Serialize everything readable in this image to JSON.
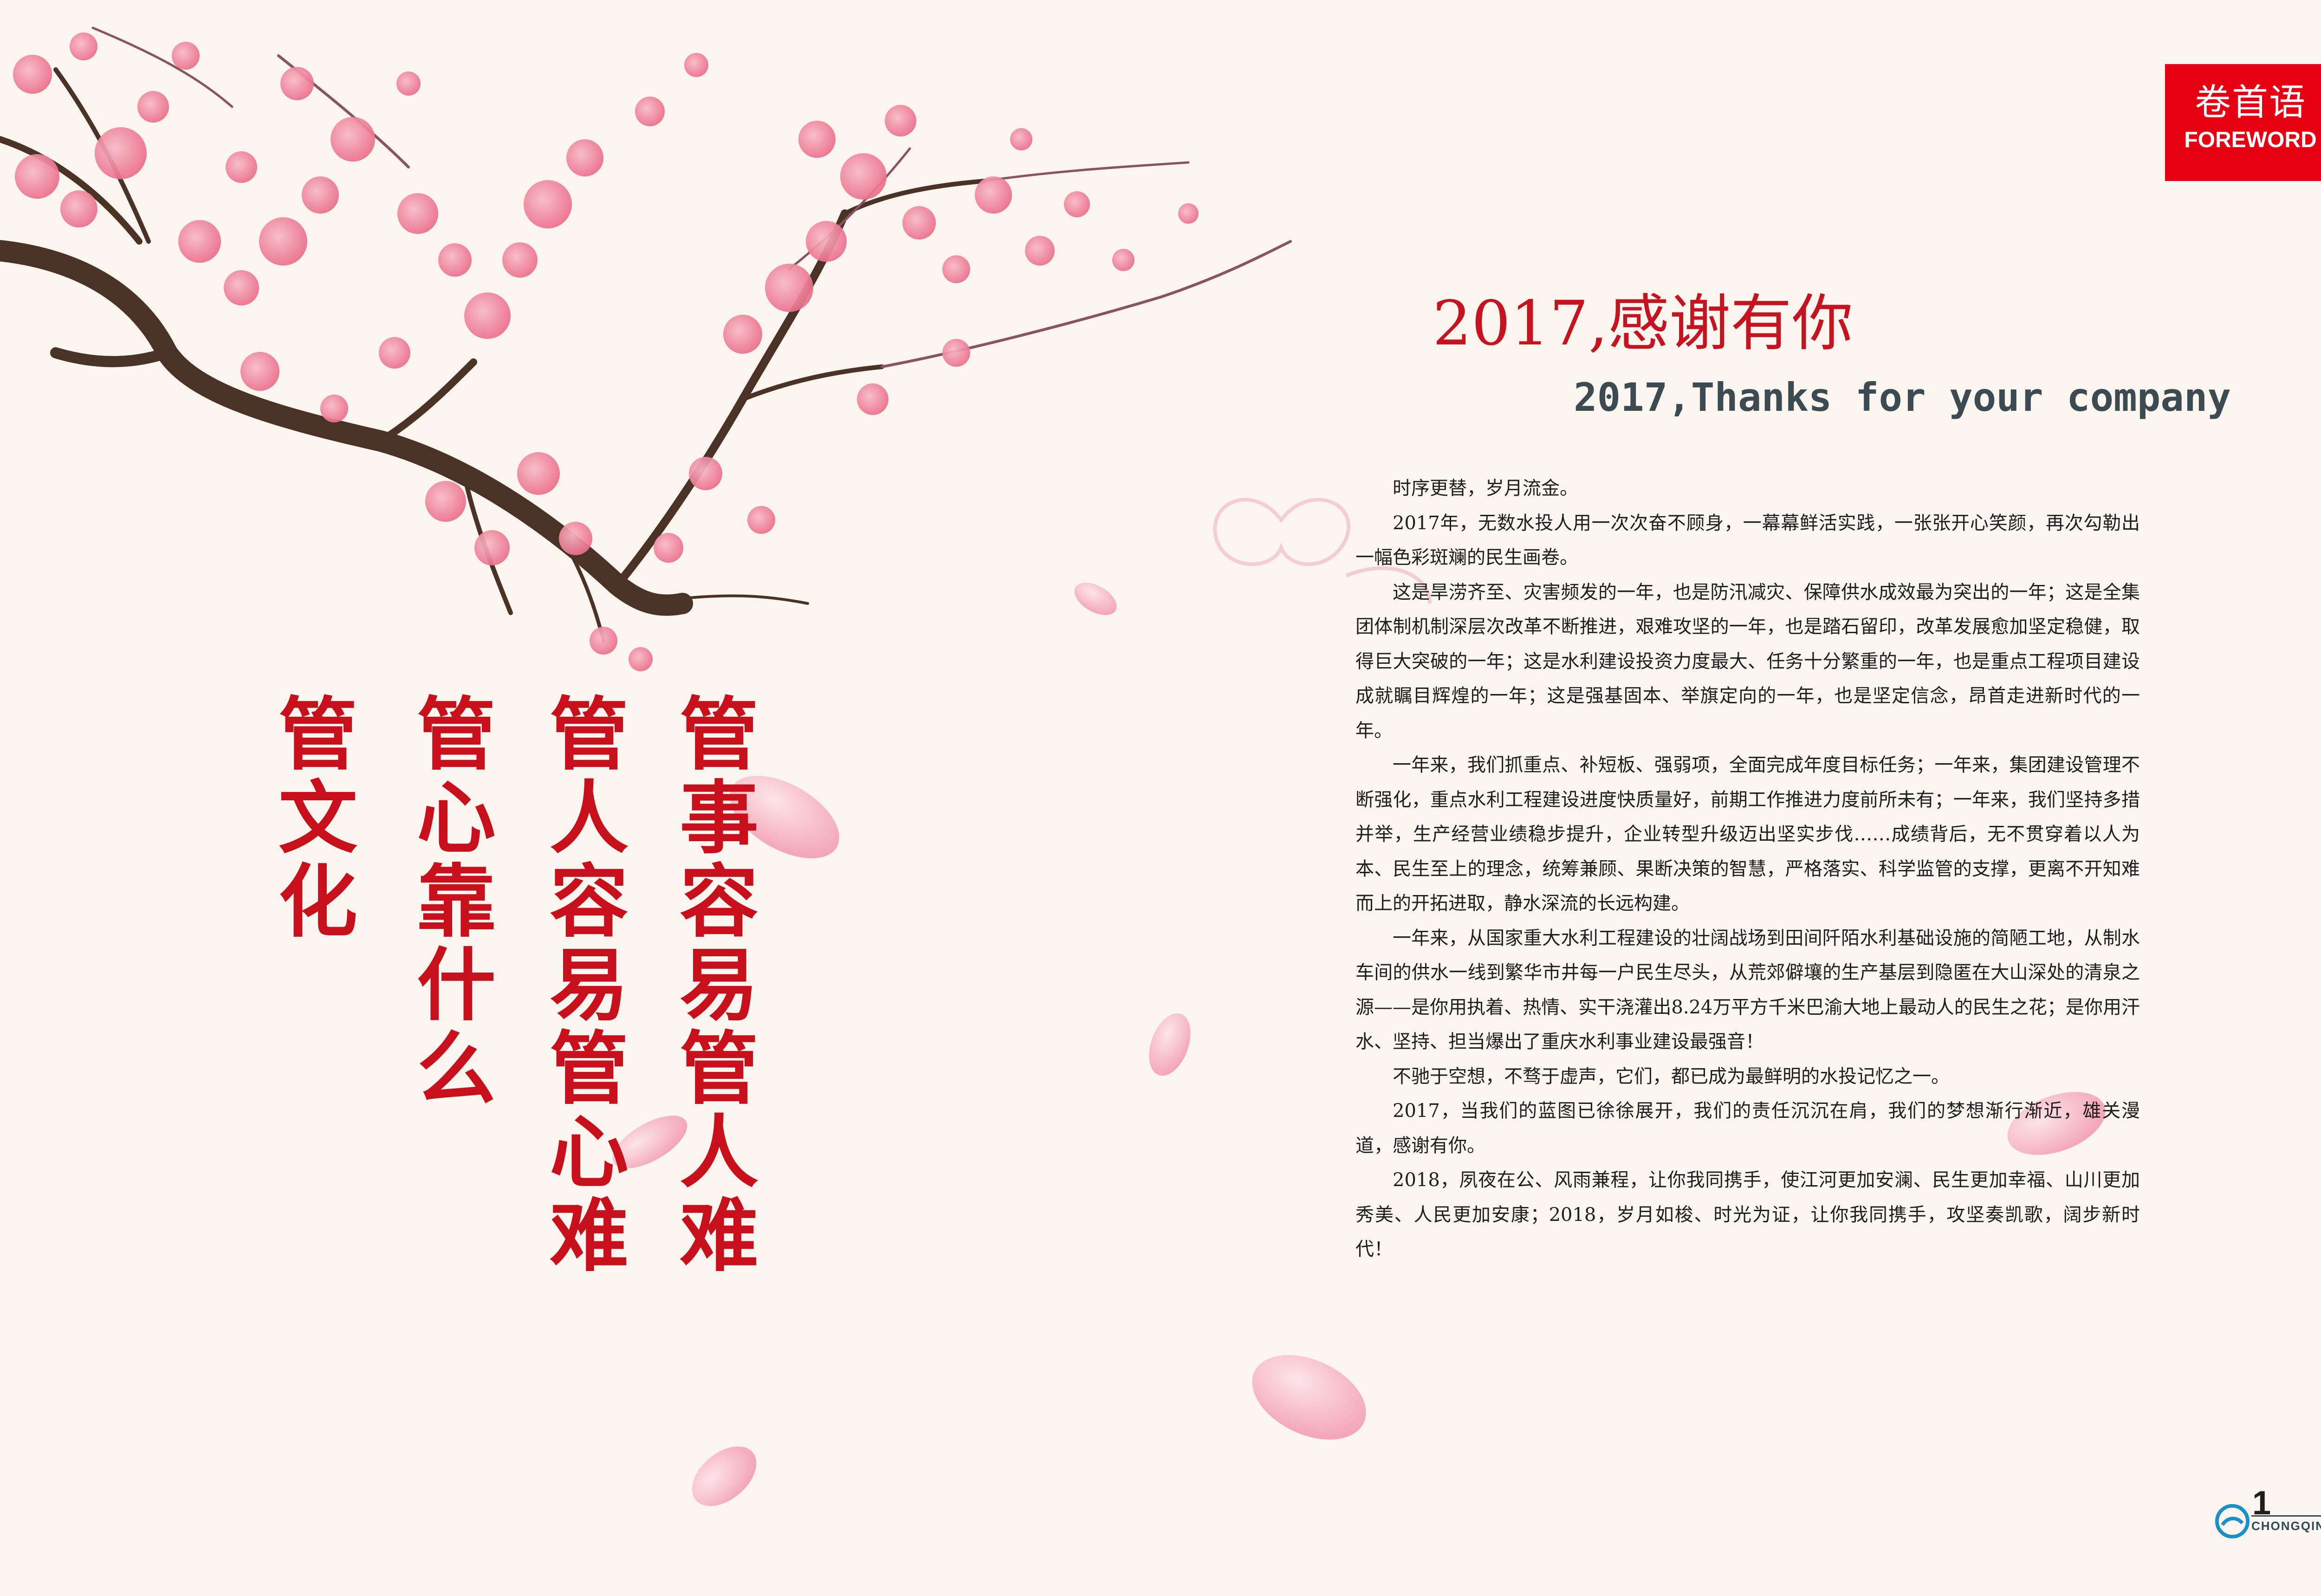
{
  "tag": {
    "cn": "卷首语",
    "en": "FOREWORD"
  },
  "title_cn": "2017,感谢有你",
  "title_en": "2017,Thanks for your company",
  "paragraphs": [
    "时序更替，岁月流金。",
    "2017年，无数水投人用一次次奋不顾身，一幕幕鲜活实践，一张张开心笑颜，再次勾勒出一幅色彩斑斓的民生画卷。",
    "这是旱涝齐至、灾害频发的一年，也是防汛减灾、保障供水成效最为突出的一年；这是全集团体制机制深层次改革不断推进，艰难攻坚的一年，也是踏石留印，改革发展愈加坚定稳健，取得巨大突破的一年；这是水利建设投资力度最大、任务十分繁重的一年，也是重点工程项目建设成就瞩目辉煌的一年；这是强基固本、举旗定向的一年，也是坚定信念，昂首走进新时代的一年。",
    "一年来，我们抓重点、补短板、强弱项，全面完成年度目标任务；一年来，集团建设管理不断强化，重点水利工程建设进度快质量好，前期工作推进力度前所未有；一年来，我们坚持多措并举，生产经营业绩稳步提升，企业转型升级迈出坚实步伐……成绩背后，无不贯穿着以人为本、民生至上的理念，统筹兼顾、果断决策的智慧，严格落实、科学监管的支撑，更离不开知难而上的开拓进取，静水深流的长远构建。",
    "一年来，从国家重大水利工程建设的壮阔战场到田间阡陌水利基础设施的简陋工地，从制水车间的供水一线到繁华市井每一户民生尽头，从荒郊僻壤的生产基层到隐匿在大山深处的清泉之源——是你用执着、热情、实干浇灌出8.24万平方千米巴渝大地上最动人的民生之花；是你用汗水、坚持、担当爆出了重庆水利事业建设最强音！",
    "不驰于空想，不骛于虚声，它们，都已成为最鲜明的水投记忆之一。",
    "2017，当我们的蓝图已徐徐展开，我们的责任沉沉在肩，我们的梦想渐行渐近，雄关漫道，感谢有你。",
    "2018，夙夜在公、风雨兼程，让你我同携手，使江河更加安澜、民生更加幸福、山川更加秀美、人民更加安康；2018，岁月如梭、时光为证，让你我同携手，攻坚奏凯歌，阔步新时代！"
  ],
  "calligraphy": [
    "管事容易管人难",
    "管人容易管心难",
    "管心靠什么",
    "管文化"
  ],
  "page_number": "1",
  "footer_logo_text": "CHONGQING",
  "colors": {
    "accent_red": "#e60012",
    "title_red": "#c5131f",
    "blossom": "#ef7f99",
    "branch": "#4a3226"
  }
}
